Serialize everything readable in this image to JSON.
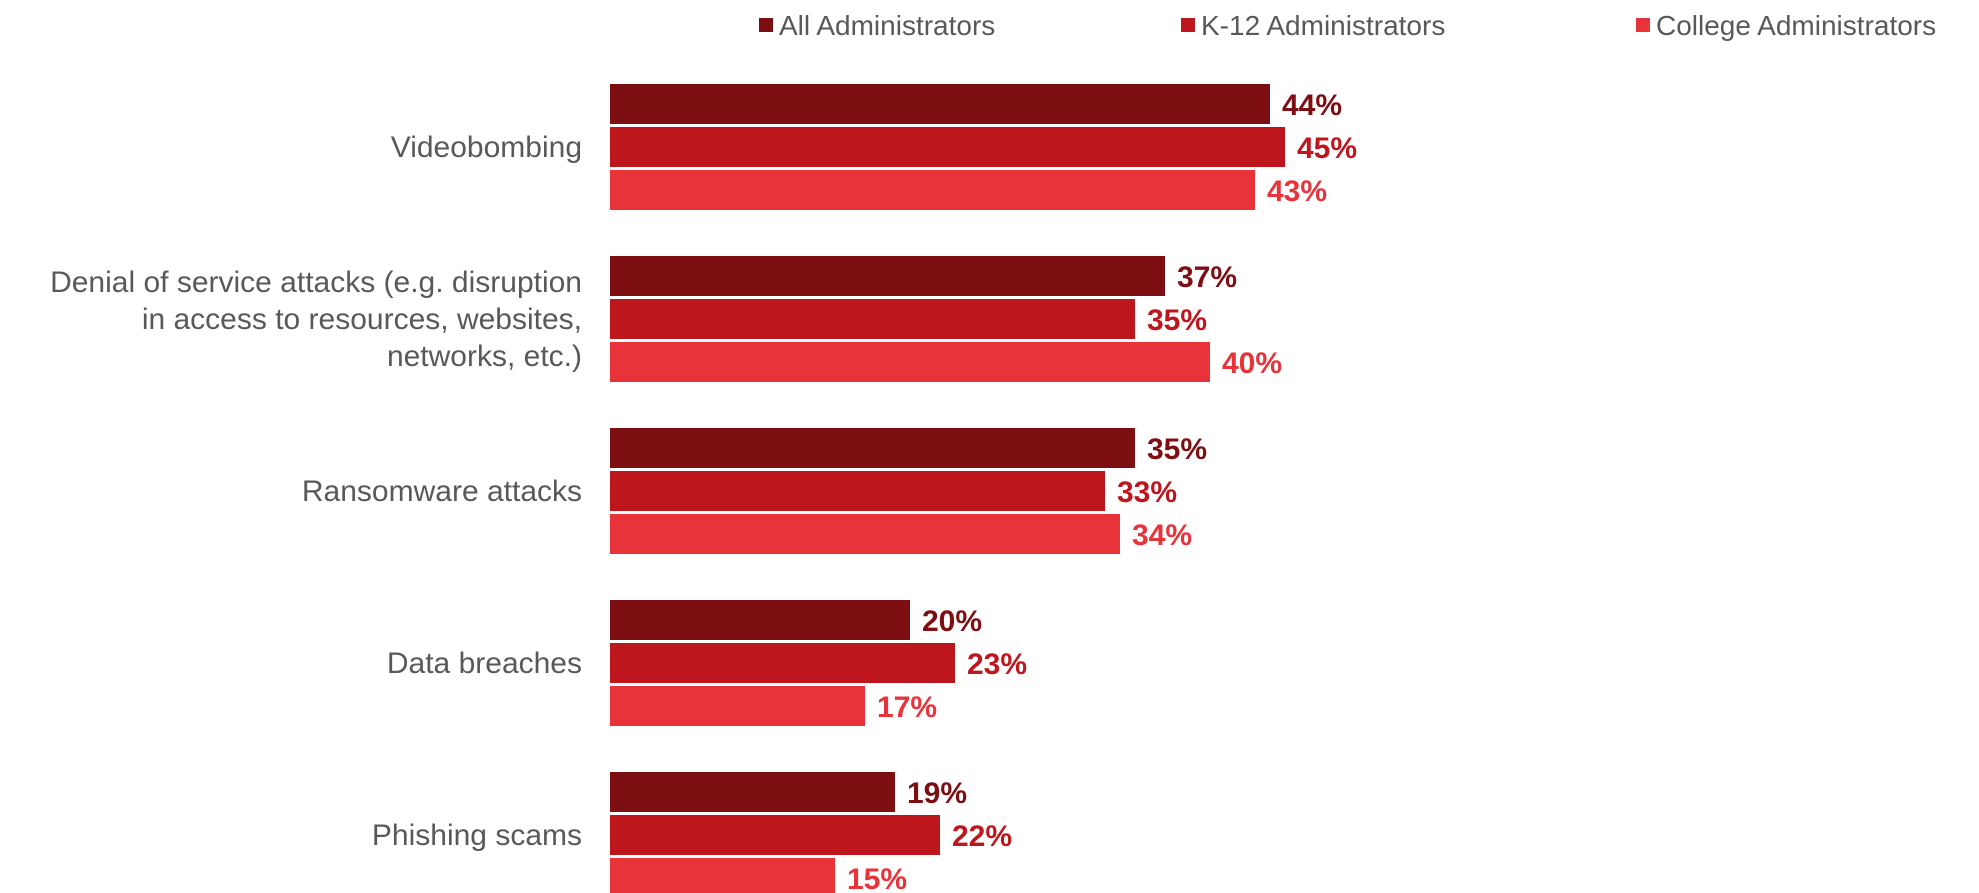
{
  "chart_data": {
    "type": "bar",
    "orientation": "horizontal",
    "categories": [
      [
        "Videobombing"
      ],
      [
        "Denial of service attacks (e.g. disruption",
        "in access to resources, websites,",
        "networks, etc.)"
      ],
      [
        "Ransomware attacks"
      ],
      [
        "Data breaches"
      ],
      [
        "Phishing scams"
      ]
    ],
    "series": [
      {
        "name": "All Administrators",
        "color": "#7d0e12",
        "values": [
          44,
          37,
          35,
          20,
          19
        ],
        "labels": [
          "44%",
          "37%",
          "35%",
          "20%",
          "19%"
        ]
      },
      {
        "name": "K-12 Administrators",
        "color": "#be161d",
        "values": [
          45,
          35,
          33,
          23,
          22
        ],
        "labels": [
          "45%",
          "35%",
          "33%",
          "23%",
          "22%"
        ]
      },
      {
        "name": "College Administrators",
        "color": "#e8333b",
        "values": [
          43,
          40,
          34,
          17,
          15
        ],
        "labels": [
          "43%",
          "40%",
          "34%",
          "17%",
          "15%"
        ]
      }
    ],
    "value_unit": "%",
    "legend_position": "top",
    "grid": false
  }
}
